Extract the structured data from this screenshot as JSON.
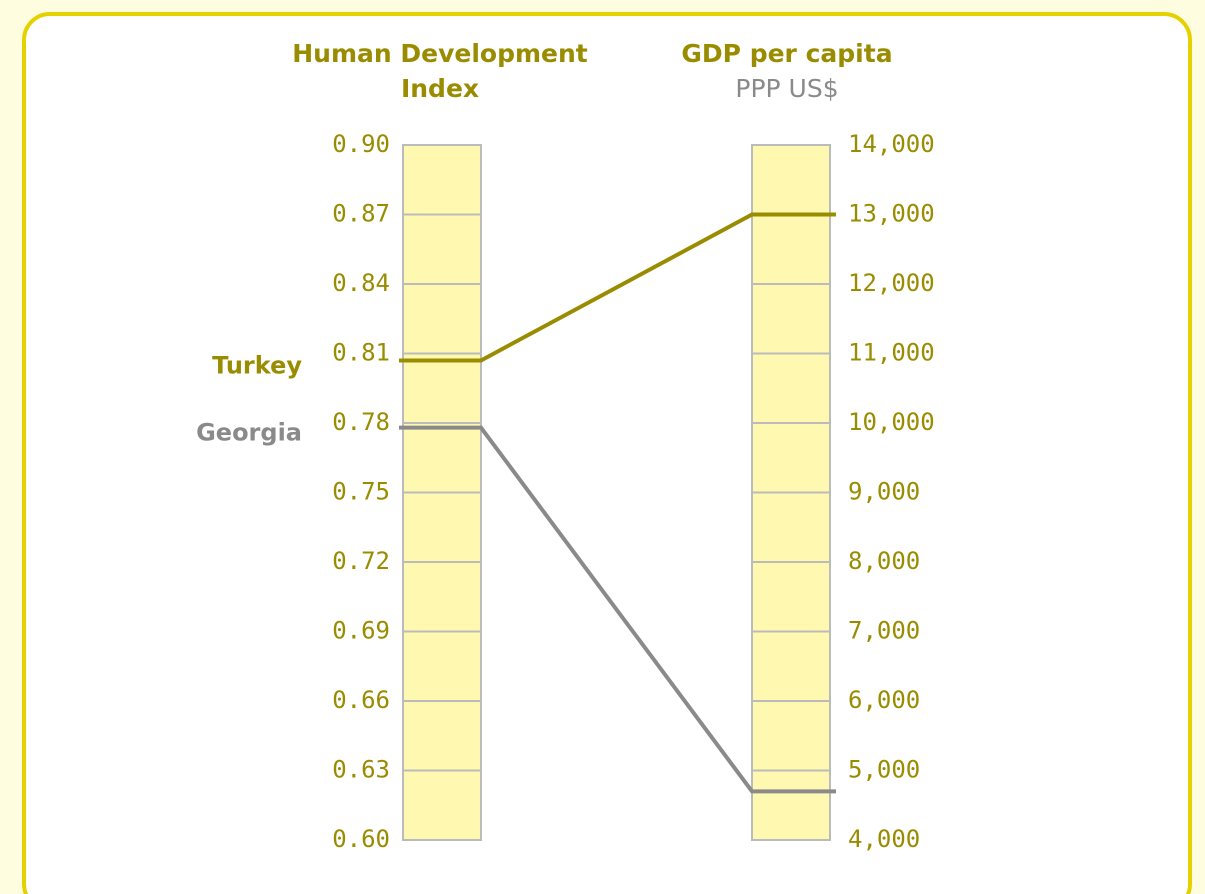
{
  "chart_data": {
    "type": "slope",
    "ylabel": "Human Development Index",
    "y2label": "GDP per capita",
    "y2sublabel": "PPP US$",
    "ylim": [
      0.6,
      0.9
    ],
    "yticks": [
      {
        "value": 0.6,
        "label": "0.60"
      },
      0.63,
      0.66,
      0.69,
      0.72,
      0.75,
      0.78,
      0.81,
      0.84,
      0.87,
      {
        "value": 0.9,
        "label": "0.90"
      }
    ],
    "y2lim": [
      4000,
      14000
    ],
    "y2ticks": [
      {
        "value": 4000,
        "label": "4,000"
      },
      {
        "value": 5000,
        "label": "5,000"
      },
      {
        "value": 6000,
        "label": "6,000"
      },
      {
        "value": 7000,
        "label": "7,000"
      },
      {
        "value": 8000,
        "label": "8,000"
      },
      {
        "value": 9000,
        "label": "9,000"
      },
      {
        "value": 10000,
        "label": "10,000"
      },
      {
        "value": 11000,
        "label": "11,000"
      },
      {
        "value": 12000,
        "label": "12,000"
      },
      {
        "value": 13000,
        "label": "13,000"
      },
      {
        "value": 14000,
        "label": "14,000"
      }
    ],
    "series": [
      {
        "name": "Turkey",
        "color": "#9a8c00",
        "values": [
          0.807,
          13000
        ]
      },
      {
        "name": "Georgia",
        "color": "#8a8a8a",
        "values": [
          0.778,
          4700
        ]
      }
    ]
  }
}
